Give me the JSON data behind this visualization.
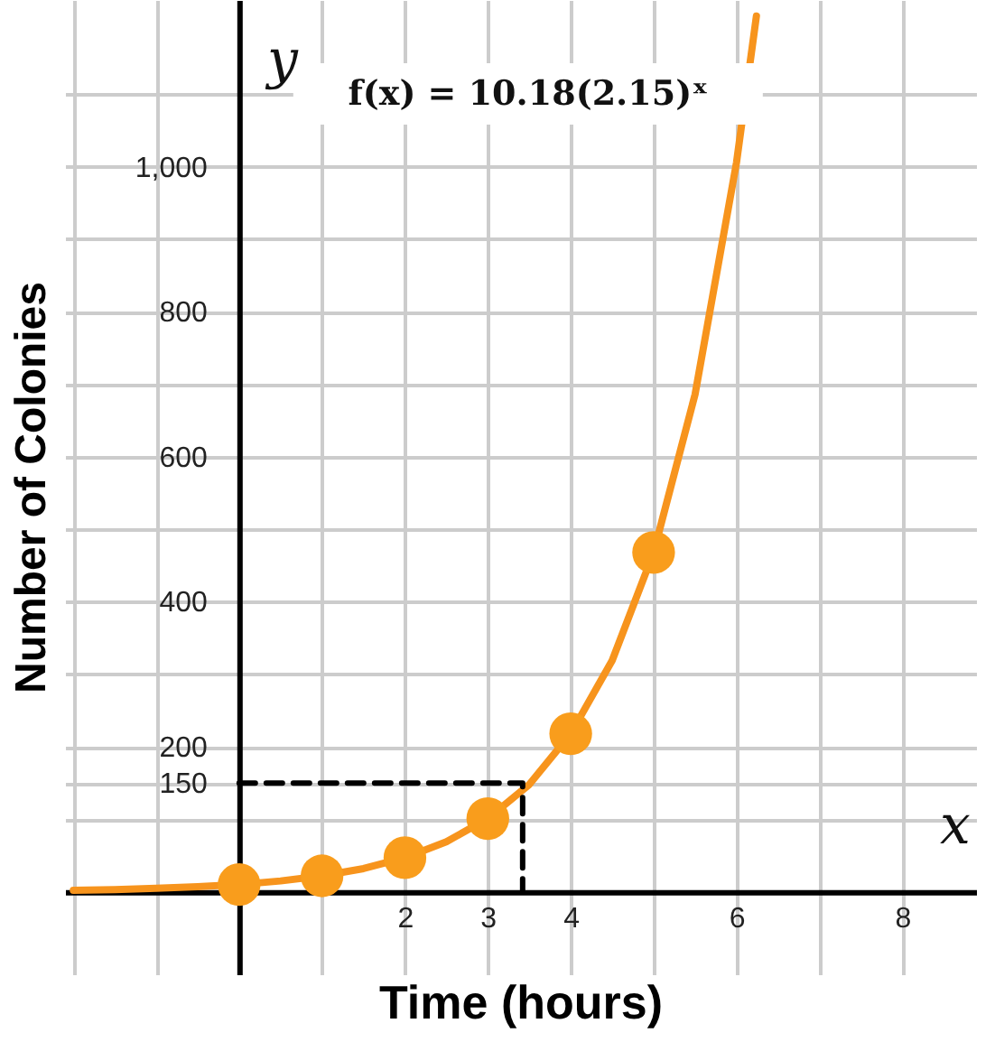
{
  "chart_data": {
    "type": "line",
    "xlabel": "Time (hours)",
    "ylabel": "Number of Colonies",
    "annotations": [
      "f(x) = 10.18(2.15)ˣ",
      "y",
      "x"
    ],
    "xlim": [
      -2.1,
      8.9
    ],
    "ylim": [
      -115,
      1230
    ],
    "xticks": [
      {
        "value": -2,
        "label": null
      },
      {
        "value": -1,
        "label": null
      },
      {
        "value": 1,
        "label": null
      },
      2,
      3,
      4,
      {
        "value": 5,
        "label": null
      },
      6,
      {
        "value": 7,
        "label": null
      },
      8
    ],
    "yticks": [
      {
        "value": 100,
        "label": null
      },
      150,
      200,
      {
        "value": 300,
        "label": null
      },
      400,
      {
        "value": 500,
        "label": null
      },
      600,
      {
        "value": 700,
        "label": null
      },
      800,
      {
        "value": 900,
        "label": null
      },
      {
        "value": 1000,
        "label": "1,000"
      },
      {
        "value": 1100,
        "label": null
      }
    ],
    "grid": true,
    "series": [
      {
        "color": "#f7941d",
        "marker": "none",
        "line_style": "solid",
        "x": [
          -2,
          -1.5,
          -1,
          -0.5,
          0,
          0.5,
          1,
          1.5,
          2,
          2.5,
          3,
          3.5,
          4,
          4.5,
          5,
          5.5,
          6,
          6.24
        ],
        "values": [
          2,
          3,
          5,
          7,
          10,
          15,
          22,
          32,
          47,
          69,
          101,
          148,
          218,
          319,
          468,
          686,
          1006,
          1208
        ]
      },
      {
        "type": "scatter",
        "color": "#f99d1c",
        "marker": "circle",
        "x": [
          0,
          1,
          2,
          3,
          4,
          5
        ],
        "values": [
          10,
          22,
          47,
          101,
          218,
          468
        ]
      },
      {
        "type": "line",
        "color": "#000000",
        "marker": "none",
        "line_style": "dashed",
        "x": [
          0,
          3.42,
          3.42
        ],
        "values": [
          150,
          150,
          0
        ]
      }
    ]
  }
}
